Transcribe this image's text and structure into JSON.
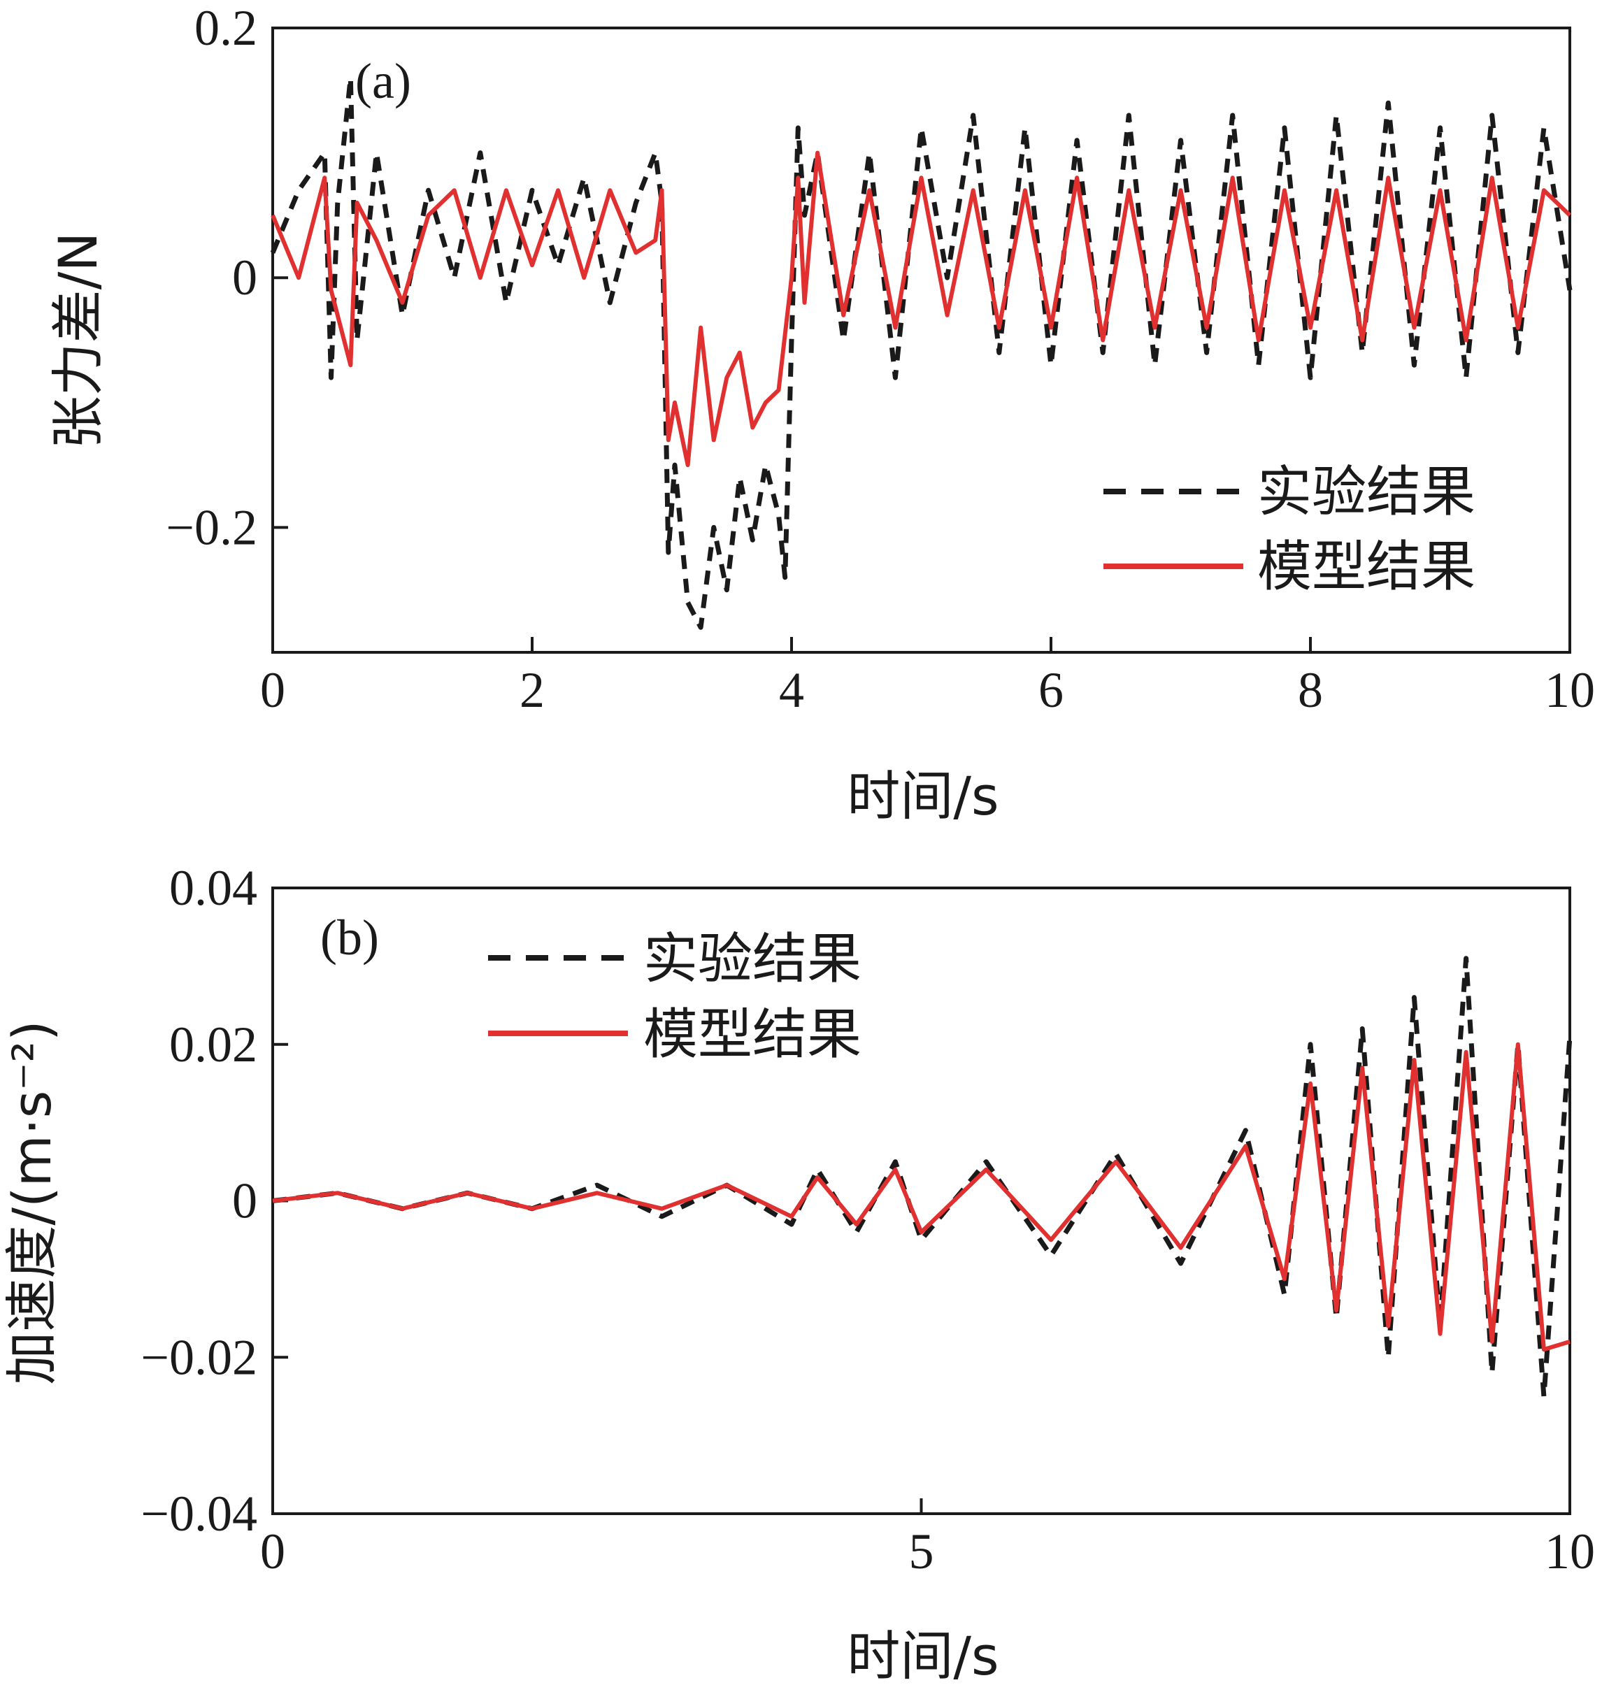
{
  "chart_data": [
    {
      "type": "line",
      "panel_label": "(a)",
      "xlabel": "时间/s",
      "ylabel": "张力差/N",
      "xlim": [
        0,
        10
      ],
      "ylim": [
        -0.3,
        0.2
      ],
      "xticks": [
        0,
        2,
        4,
        6,
        8,
        10
      ],
      "xtick_labels": [
        "0",
        "2",
        "4",
        "6",
        "8",
        "10"
      ],
      "yticks": [
        0.2,
        0,
        -0.2
      ],
      "ytick_labels": [
        "0.2",
        "0",
        "−0.2"
      ],
      "legend_position": "bottom-right",
      "series": [
        {
          "name": "实验结果",
          "color": "#1a1a1a",
          "style": "dashed",
          "x": [
            0,
            0.2,
            0.4,
            0.45,
            0.5,
            0.6,
            0.65,
            0.8,
            1.0,
            1.2,
            1.4,
            1.6,
            1.8,
            2.0,
            2.2,
            2.4,
            2.6,
            2.8,
            2.95,
            3.0,
            3.05,
            3.1,
            3.2,
            3.3,
            3.4,
            3.5,
            3.6,
            3.7,
            3.8,
            3.9,
            3.95,
            4.0,
            4.05,
            4.1,
            4.2,
            4.4,
            4.6,
            4.8,
            5.0,
            5.2,
            5.4,
            5.6,
            5.8,
            6.0,
            6.2,
            6.4,
            6.6,
            6.8,
            7.0,
            7.2,
            7.4,
            7.6,
            7.8,
            8.0,
            8.2,
            8.4,
            8.6,
            8.8,
            9.0,
            9.2,
            9.4,
            9.6,
            9.8,
            10.0
          ],
          "y": [
            0.02,
            0.07,
            0.1,
            -0.08,
            0.06,
            0.16,
            -0.05,
            0.1,
            -0.03,
            0.07,
            0.0,
            0.1,
            -0.02,
            0.07,
            0.01,
            0.08,
            -0.02,
            0.06,
            0.1,
            0.06,
            -0.22,
            -0.15,
            -0.26,
            -0.28,
            -0.2,
            -0.25,
            -0.16,
            -0.21,
            -0.15,
            -0.19,
            -0.24,
            -0.05,
            0.12,
            0.05,
            0.1,
            -0.05,
            0.1,
            -0.08,
            0.12,
            0.0,
            0.13,
            -0.06,
            0.12,
            -0.07,
            0.11,
            -0.06,
            0.13,
            -0.07,
            0.11,
            -0.06,
            0.13,
            -0.07,
            0.12,
            -0.08,
            0.13,
            -0.06,
            0.14,
            -0.07,
            0.12,
            -0.08,
            0.13,
            -0.06,
            0.12,
            -0.01
          ]
        },
        {
          "name": "模型结果",
          "color": "#e03030",
          "style": "solid",
          "x": [
            0,
            0.2,
            0.4,
            0.45,
            0.6,
            0.65,
            0.8,
            1.0,
            1.2,
            1.4,
            1.6,
            1.8,
            2.0,
            2.2,
            2.4,
            2.6,
            2.8,
            2.95,
            3.0,
            3.05,
            3.1,
            3.2,
            3.3,
            3.4,
            3.5,
            3.6,
            3.7,
            3.8,
            3.9,
            4.0,
            4.05,
            4.1,
            4.2,
            4.4,
            4.6,
            4.8,
            5.0,
            5.2,
            5.4,
            5.6,
            5.8,
            6.0,
            6.2,
            6.4,
            6.6,
            6.8,
            7.0,
            7.2,
            7.4,
            7.6,
            7.8,
            8.0,
            8.2,
            8.4,
            8.6,
            8.8,
            9.0,
            9.2,
            9.4,
            9.6,
            9.8,
            10.0
          ],
          "y": [
            0.05,
            0.0,
            0.08,
            -0.01,
            -0.07,
            0.06,
            0.03,
            -0.02,
            0.05,
            0.07,
            0.0,
            0.07,
            0.01,
            0.07,
            0.0,
            0.07,
            0.02,
            0.03,
            0.07,
            -0.13,
            -0.1,
            -0.15,
            -0.04,
            -0.13,
            -0.08,
            -0.06,
            -0.12,
            -0.1,
            -0.09,
            0.0,
            0.08,
            -0.02,
            0.1,
            -0.03,
            0.07,
            -0.04,
            0.08,
            -0.03,
            0.07,
            -0.04,
            0.07,
            -0.04,
            0.08,
            -0.05,
            0.07,
            -0.04,
            0.07,
            -0.04,
            0.08,
            -0.05,
            0.07,
            -0.04,
            0.07,
            -0.05,
            0.08,
            -0.04,
            0.07,
            -0.05,
            0.08,
            -0.04,
            0.07,
            0.05
          ]
        }
      ]
    },
    {
      "type": "line",
      "panel_label": "(b)",
      "xlabel": "时间/s",
      "ylabel": "加速度/(m·s⁻²)",
      "xlim": [
        0,
        10
      ],
      "ylim": [
        -0.04,
        0.04
      ],
      "xticks": [
        0,
        5,
        10
      ],
      "xtick_labels": [
        "0",
        "5",
        "10"
      ],
      "yticks": [
        0.04,
        0.02,
        0,
        -0.02,
        -0.04
      ],
      "ytick_labels": [
        "0.04",
        "0.02",
        "0",
        "−0.02",
        "−0.04"
      ],
      "legend_position": "top-left",
      "series": [
        {
          "name": "实验结果",
          "color": "#1a1a1a",
          "style": "dashed",
          "x": [
            0,
            0.5,
            1.0,
            1.5,
            2.0,
            2.5,
            3.0,
            3.5,
            4.0,
            4.2,
            4.5,
            4.8,
            5.0,
            5.5,
            6.0,
            6.5,
            7.0,
            7.5,
            7.8,
            8.0,
            8.2,
            8.4,
            8.6,
            8.8,
            9.0,
            9.2,
            9.4,
            9.6,
            9.8,
            10.0
          ],
          "y": [
            0,
            0.001,
            -0.001,
            0.001,
            -0.001,
            0.002,
            -0.002,
            0.002,
            -0.003,
            0.004,
            -0.004,
            0.005,
            -0.005,
            0.005,
            -0.007,
            0.006,
            -0.008,
            0.009,
            -0.012,
            0.02,
            -0.015,
            0.022,
            -0.02,
            0.026,
            -0.016,
            0.031,
            -0.022,
            0.02,
            -0.025,
            0.021
          ]
        },
        {
          "name": "模型结果",
          "color": "#e03030",
          "style": "solid",
          "x": [
            0,
            0.5,
            1.0,
            1.5,
            2.0,
            2.5,
            3.0,
            3.5,
            4.0,
            4.2,
            4.5,
            4.8,
            5.0,
            5.5,
            6.0,
            6.5,
            7.0,
            7.5,
            7.8,
            8.0,
            8.2,
            8.4,
            8.6,
            8.8,
            9.0,
            9.2,
            9.4,
            9.6,
            9.8,
            10.0
          ],
          "y": [
            0,
            0.001,
            -0.001,
            0.001,
            -0.001,
            0.001,
            -0.001,
            0.002,
            -0.002,
            0.003,
            -0.003,
            0.004,
            -0.004,
            0.004,
            -0.005,
            0.005,
            -0.006,
            0.007,
            -0.01,
            0.015,
            -0.014,
            0.017,
            -0.016,
            0.018,
            -0.017,
            0.019,
            -0.018,
            0.02,
            -0.019,
            -0.018
          ]
        }
      ]
    }
  ]
}
